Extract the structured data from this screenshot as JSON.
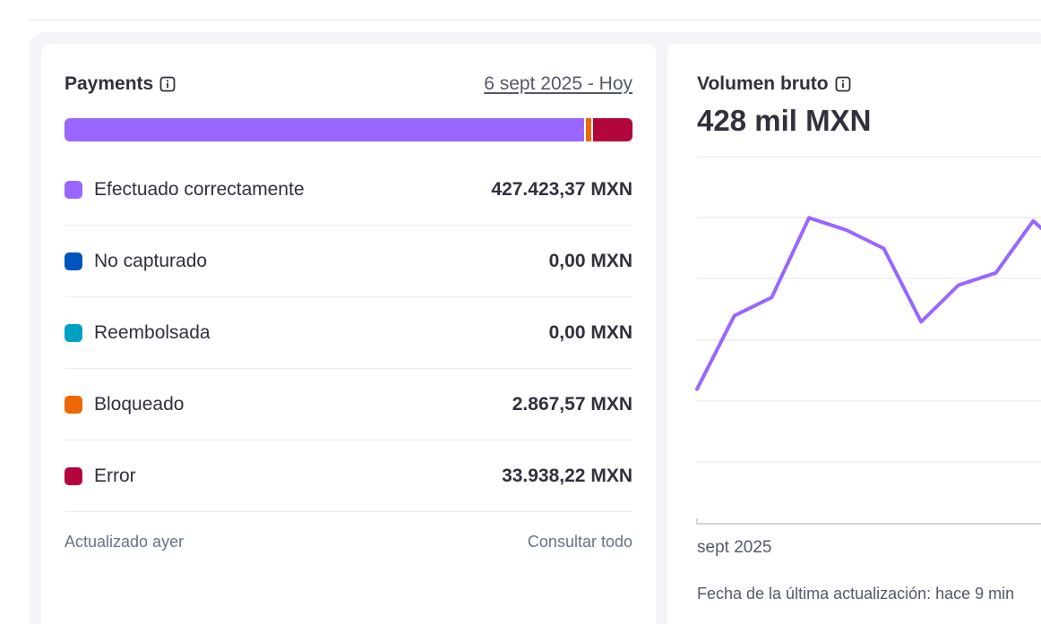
{
  "payments": {
    "title": "Payments",
    "date_range": "6 sept 2025 - Hoy",
    "statuses": [
      {
        "label": "Efectuado correctamente",
        "value": "427.423,37 MXN",
        "amount": 427423.37,
        "color": "#9966ff"
      },
      {
        "label": "No capturado",
        "value": "0,00 MXN",
        "amount": 0,
        "color": "#0055bc"
      },
      {
        "label": "Reembolsada",
        "value": "0,00 MXN",
        "amount": 0,
        "color": "#00a0c0"
      },
      {
        "label": "Bloqueado",
        "value": "2.867,57 MXN",
        "amount": 2867.57,
        "color": "#ed6804"
      },
      {
        "label": "Error",
        "value": "33.938,22 MXN",
        "amount": 33938.22,
        "color": "#b3063d"
      }
    ],
    "footer_left": "Actualizado ayer",
    "footer_right": "Consultar todo"
  },
  "volume": {
    "title": "Volumen bruto",
    "total": "428 mil MXN",
    "x_label": "sept 2025",
    "updated_note": "Fecha de la última actualización: hace 9 min"
  },
  "chart_data": {
    "type": "line",
    "title": "Volumen bruto",
    "x": [
      1,
      2,
      3,
      4,
      5,
      6,
      7,
      8,
      9,
      10,
      11
    ],
    "values": [
      22,
      34,
      37,
      50,
      48,
      45,
      33,
      39,
      41,
      49.5,
      44
    ],
    "ylim": [
      0,
      60
    ],
    "grid": true,
    "line_color": "#9966ff"
  }
}
